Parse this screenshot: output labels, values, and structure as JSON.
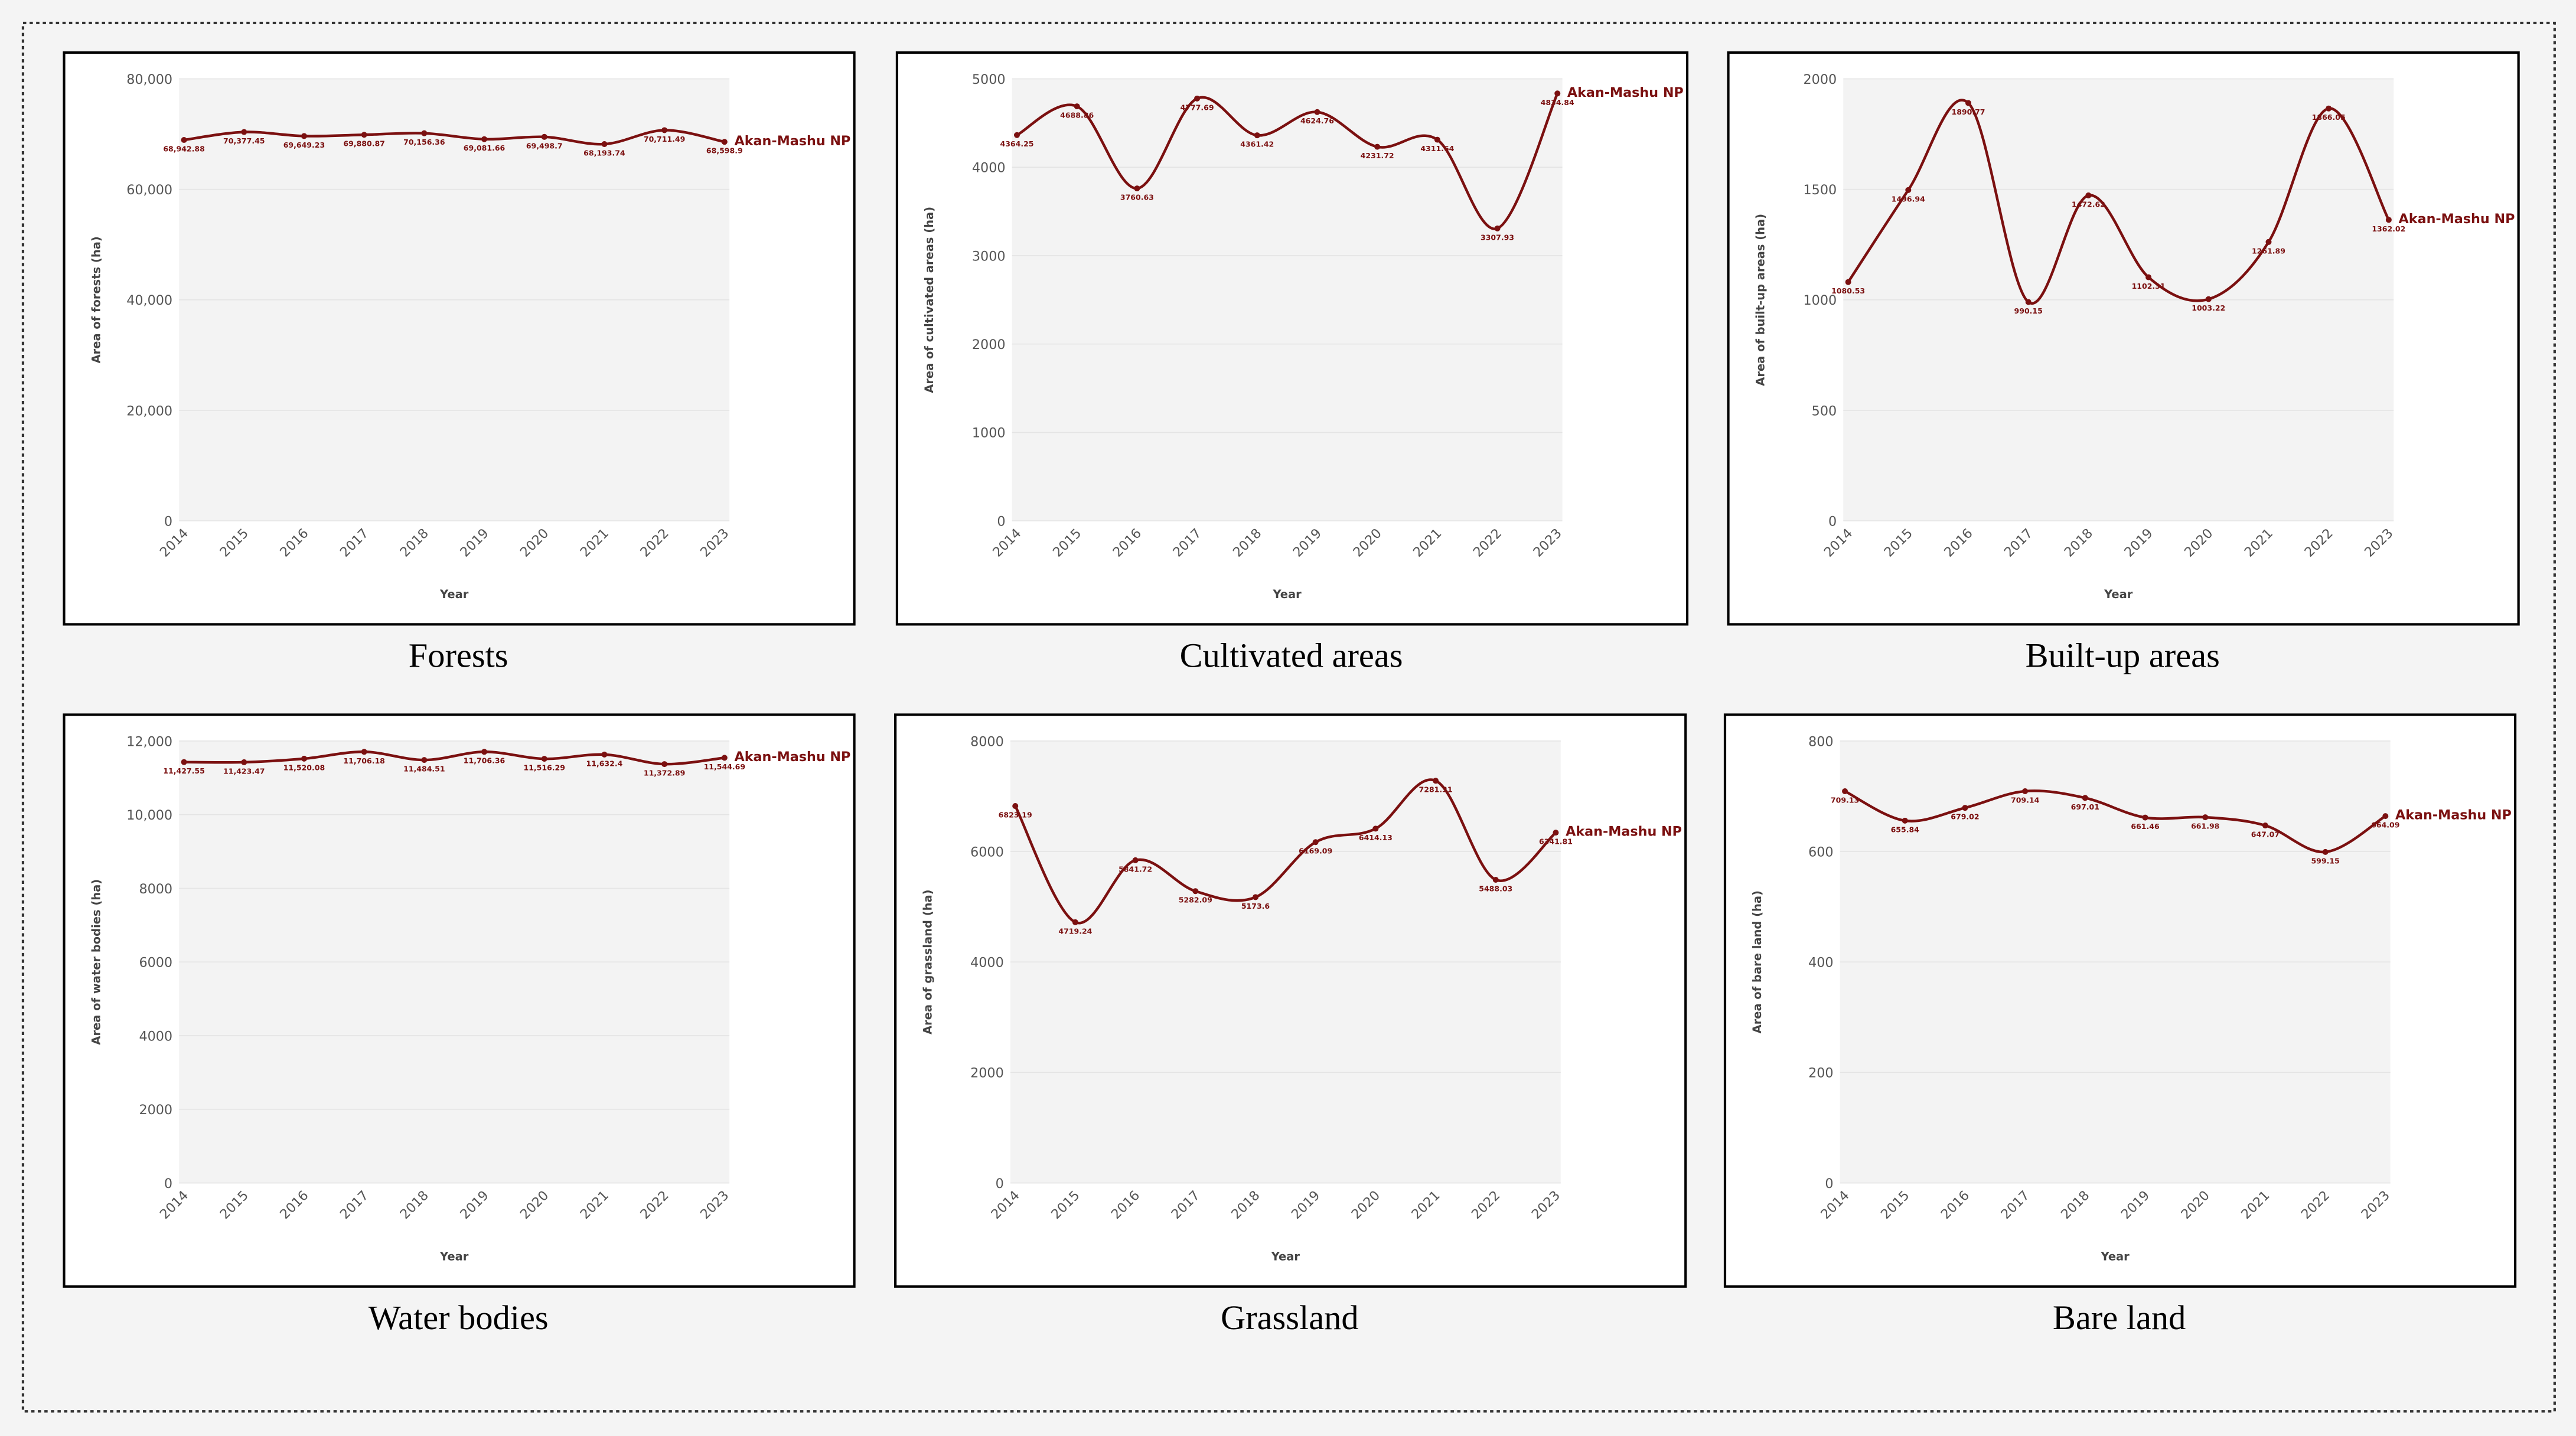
{
  "chart_data": [
    {
      "type": "line",
      "title": "Forests",
      "ylabel": "Area of forests (ha)",
      "xlabel": "Year",
      "categories": [
        "2014",
        "2015",
        "2016",
        "2017",
        "2018",
        "2019",
        "2020",
        "2021",
        "2022",
        "2023"
      ],
      "series": [
        {
          "name": "Akan-Mashu NP",
          "color": "#7b1010",
          "values": [
            68942.88,
            70377.45,
            69649.23,
            69880.87,
            70156.36,
            69081.66,
            69498.7,
            68193.74,
            70711.49,
            68598.9
          ],
          "value_labels": [
            "68,942.88",
            "70,377.45",
            "69,649.23",
            "69,880.87",
            "70,156.36",
            "69,081.66",
            "69,498.7",
            "68,193.74",
            "70,711.49",
            "68,598.9"
          ]
        }
      ],
      "ylim": [
        0,
        80000
      ],
      "yticks": [
        0,
        {
          "value": 20000,
          "label": "20,000"
        },
        {
          "value": 40000,
          "label": "40,000"
        },
        {
          "value": 60000,
          "label": "60,000"
        },
        {
          "value": 80000,
          "label": "80,000"
        }
      ],
      "grid": true
    },
    {
      "type": "line",
      "title": "Cultivated areas",
      "ylabel": "Area of cultivated areas (ha)",
      "xlabel": "Year",
      "categories": [
        "2014",
        "2015",
        "2016",
        "2017",
        "2018",
        "2019",
        "2020",
        "2021",
        "2022",
        "2023"
      ],
      "series": [
        {
          "name": "Akan-Mashu NP",
          "color": "#7b1010",
          "values": [
            4364.25,
            4688.86,
            3760.63,
            4777.69,
            4361.42,
            4624.76,
            4231.72,
            4311.64,
            3307.93,
            4834.84
          ]
        }
      ],
      "ylim": [
        0,
        5000
      ],
      "yticks": [
        0,
        1000,
        2000,
        3000,
        4000,
        5000
      ],
      "grid": true
    },
    {
      "type": "line",
      "title": "Built-up areas",
      "ylabel": "Area of built-up areas (ha)",
      "xlabel": "Year",
      "categories": [
        "2014",
        "2015",
        "2016",
        "2017",
        "2018",
        "2019",
        "2020",
        "2021",
        "2022",
        "2023"
      ],
      "series": [
        {
          "name": "Akan-Mashu NP",
          "color": "#7b1010",
          "values": [
            1080.53,
            1496.94,
            1890.77,
            990.15,
            1472.62,
            1102.31,
            1003.22,
            1261.89,
            1866.05,
            1362.02
          ]
        }
      ],
      "ylim": [
        0,
        2000
      ],
      "yticks": [
        0,
        500,
        1000,
        1500,
        2000
      ],
      "grid": true
    },
    {
      "type": "line",
      "title": "Water bodies",
      "ylabel": "Area of water bodies (ha)",
      "xlabel": "Year",
      "categories": [
        "2014",
        "2015",
        "2016",
        "2017",
        "2018",
        "2019",
        "2020",
        "2021",
        "2022",
        "2023"
      ],
      "series": [
        {
          "name": "Akan-Mashu NP",
          "color": "#7b1010",
          "values": [
            11427.55,
            11423.47,
            11520.08,
            11706.18,
            11484.51,
            11706.36,
            11516.29,
            11632.4,
            11372.89,
            11544.69
          ],
          "value_labels": [
            "11,427.55",
            "11,423.47",
            "11,520.08",
            "11,706.18",
            "11,484.51",
            "11,706.36",
            "11,516.29",
            "11,632.4",
            "11,372.89",
            "11,544.69"
          ]
        }
      ],
      "ylim": [
        0,
        12000
      ],
      "yticks": [
        0,
        2000,
        4000,
        6000,
        8000,
        {
          "value": 10000,
          "label": "10,000"
        },
        {
          "value": 12000,
          "label": "12,000"
        }
      ],
      "grid": true
    },
    {
      "type": "line",
      "title": "Grassland",
      "ylabel": "Area of grassland (ha)",
      "xlabel": "Year",
      "categories": [
        "2014",
        "2015",
        "2016",
        "2017",
        "2018",
        "2019",
        "2020",
        "2021",
        "2022",
        "2023"
      ],
      "series": [
        {
          "name": "Akan-Mashu NP",
          "color": "#7b1010",
          "values": [
            6823.19,
            4719.24,
            5841.72,
            5282.09,
            5173.6,
            6169.09,
            6414.13,
            7281.31,
            5488.03,
            6341.81
          ]
        }
      ],
      "ylim": [
        0,
        8000
      ],
      "yticks": [
        0,
        2000,
        4000,
        6000,
        8000
      ],
      "grid": true
    },
    {
      "type": "line",
      "title": "Bare land",
      "ylabel": "Area of bare land (ha)",
      "xlabel": "Year",
      "categories": [
        "2014",
        "2015",
        "2016",
        "2017",
        "2018",
        "2019",
        "2020",
        "2021",
        "2022",
        "2023"
      ],
      "series": [
        {
          "name": "Akan-Mashu NP",
          "color": "#7b1010",
          "values": [
            709.13,
            655.84,
            679.02,
            709.14,
            697.01,
            661.46,
            661.98,
            647.07,
            599.15,
            664.09
          ]
        }
      ],
      "ylim": [
        0,
        800
      ],
      "yticks": [
        0,
        200,
        400,
        600,
        800
      ],
      "grid": true
    }
  ]
}
